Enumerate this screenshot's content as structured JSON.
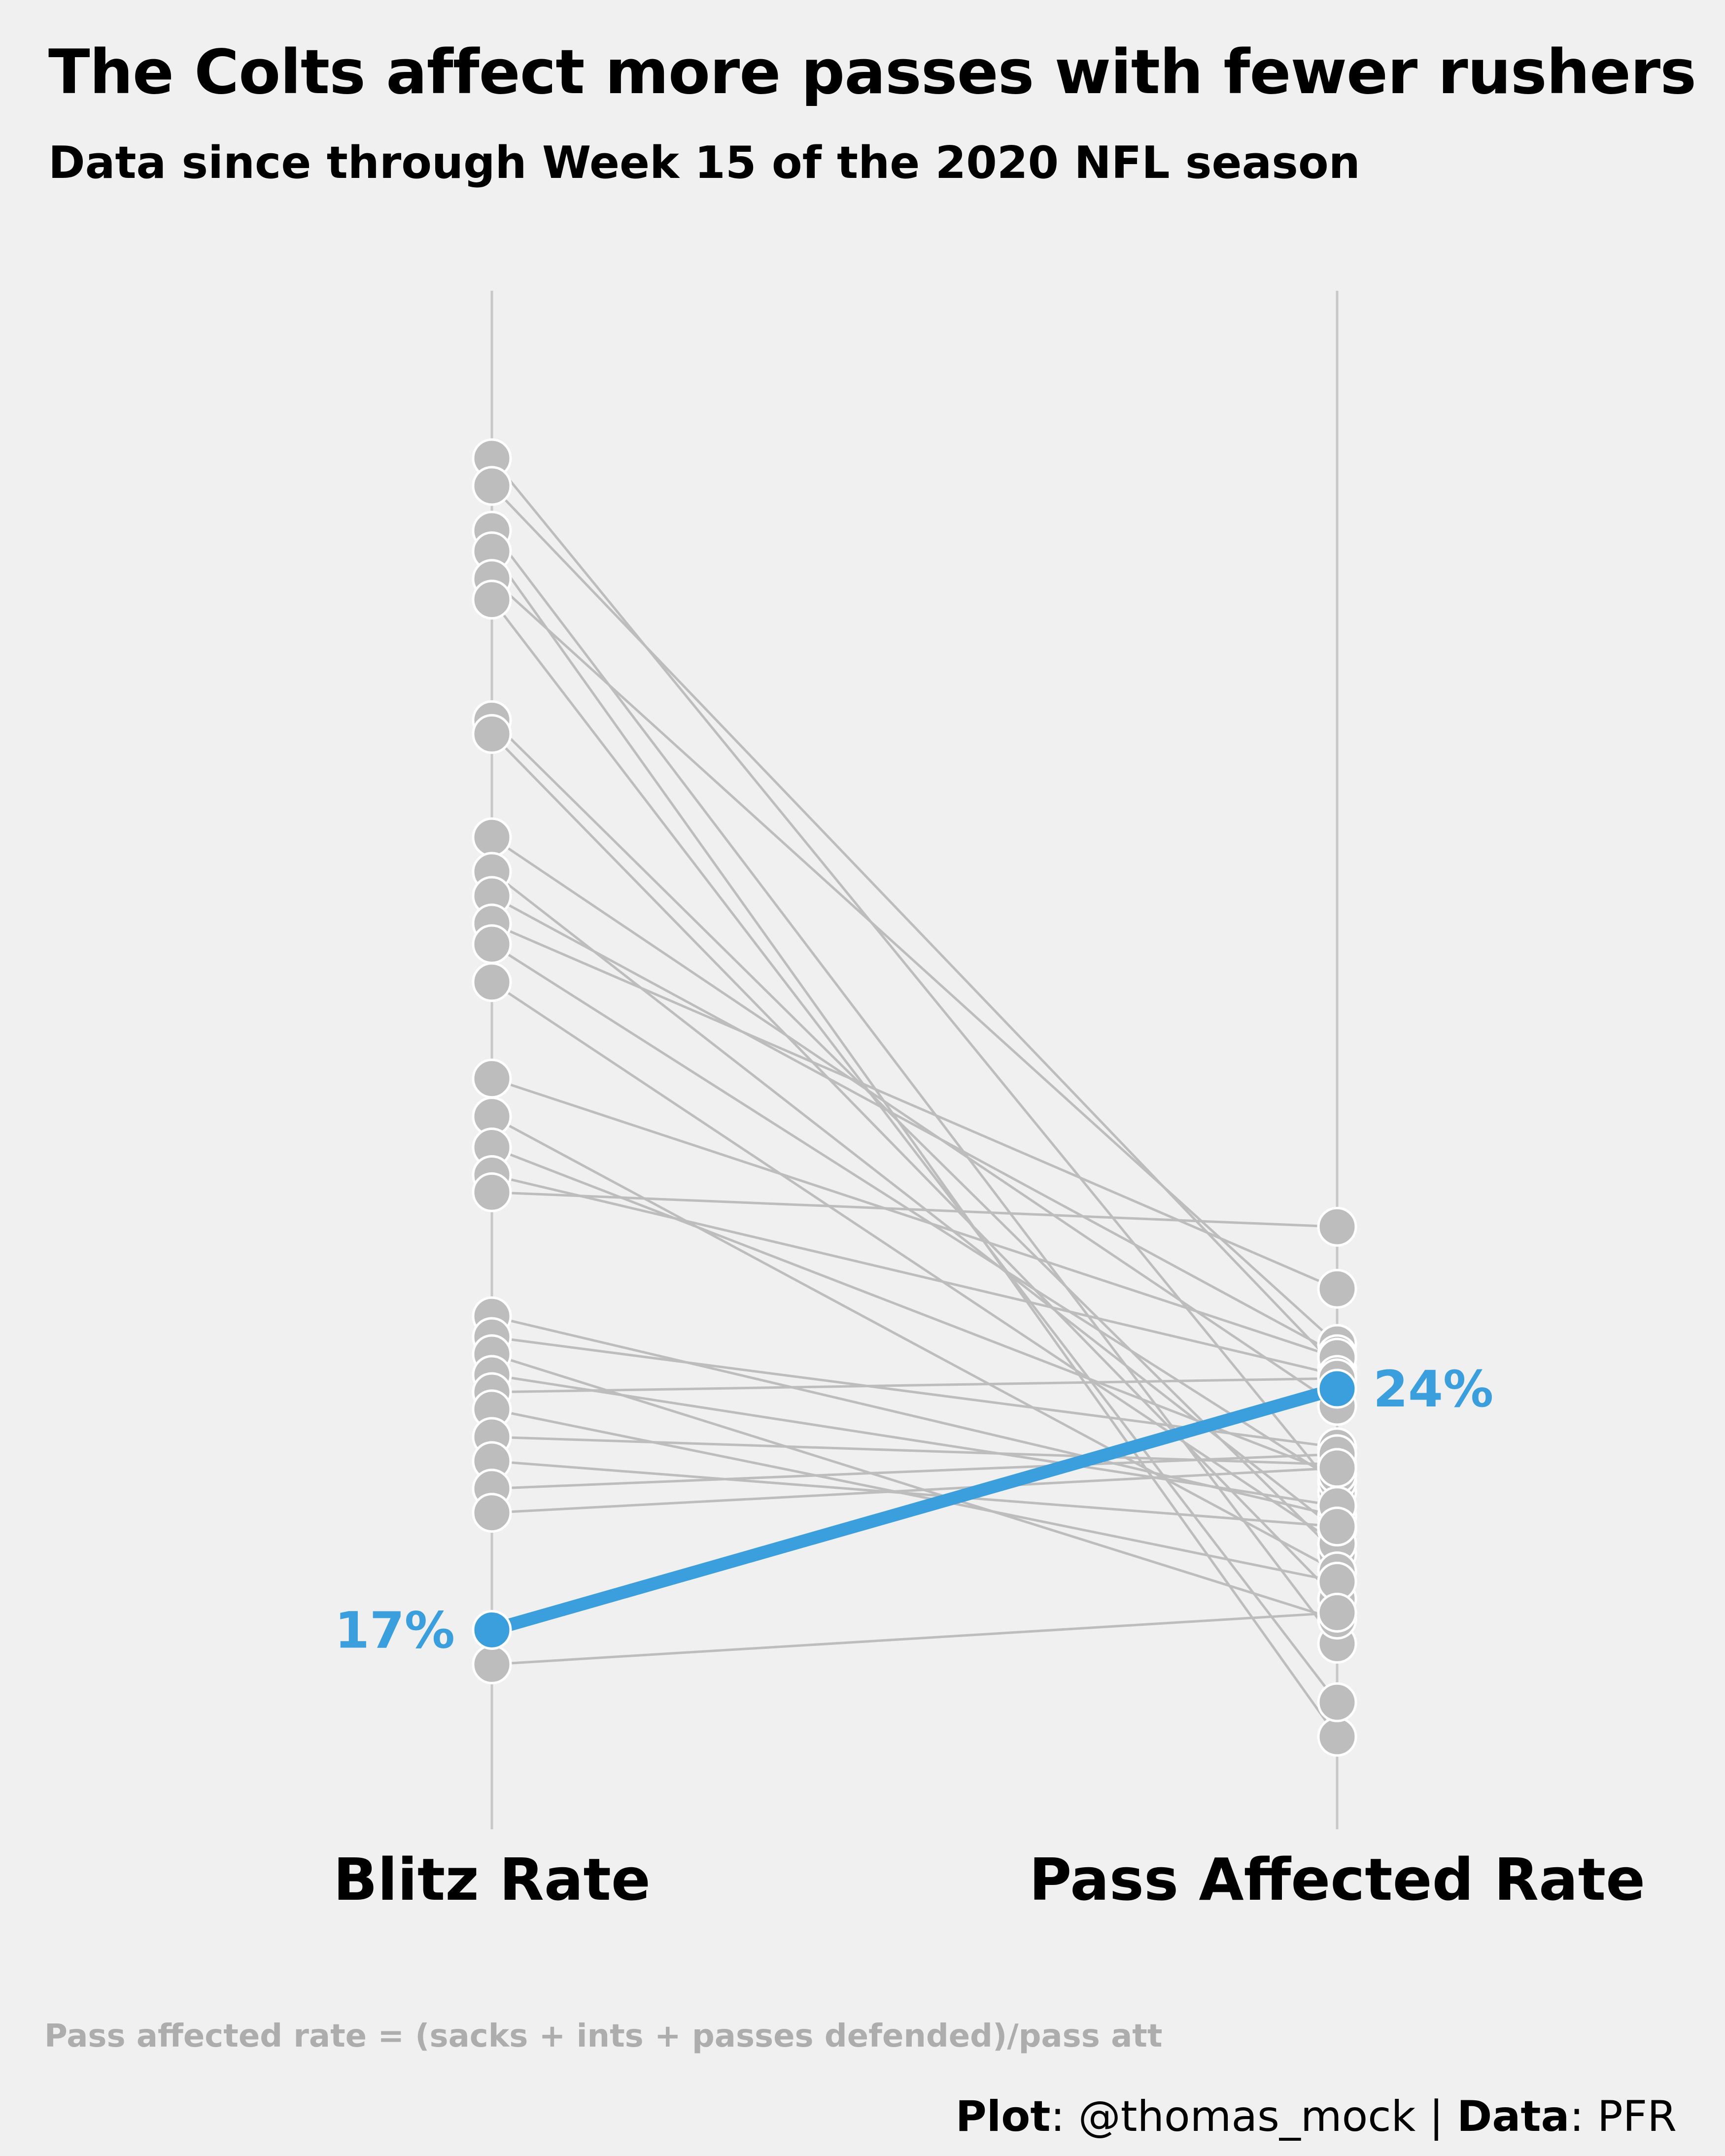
{
  "header": {
    "title": "The Colts affect more passes with fewer rushers",
    "subtitle": "Data since through Week 15 of the 2020 NFL season"
  },
  "footer": {
    "formula_note": "Pass affected rate = (sacks + ints + passes defended)/pass att",
    "plot_label": "Plot",
    "plot_value": ": @thomas_mock | ",
    "data_label": "Data",
    "data_value": ": PFR"
  },
  "colors": {
    "background": "#f0f0f0",
    "highlight": "#3a9fdc",
    "others": "#bdbdbd",
    "axis": "#c8c8c8"
  },
  "chart_data": {
    "type": "line",
    "subtype": "slopegraph",
    "categories": [
      "Blitz Rate",
      "Pass Affected Rate"
    ],
    "category_labels": [
      "Blitz Rate",
      "Pass Affected Rate"
    ],
    "highlight": {
      "team": "Colts",
      "values": [
        17,
        24
      ],
      "labels": [
        "17%",
        "24%"
      ]
    },
    "others": [
      [
        51.0,
        21.0
      ],
      [
        50.2,
        24.6
      ],
      [
        48.9,
        16.6
      ],
      [
        48.3,
        13.9
      ],
      [
        47.5,
        25.3
      ],
      [
        46.9,
        14.9
      ],
      [
        43.4,
        19.2
      ],
      [
        43.0,
        17.9
      ],
      [
        40.0,
        23.5
      ],
      [
        39.0,
        19.9
      ],
      [
        38.3,
        25.0
      ],
      [
        37.5,
        26.9
      ],
      [
        36.9,
        21.3
      ],
      [
        35.8,
        19.5
      ],
      [
        33.0,
        24.9
      ],
      [
        31.9,
        18.7
      ],
      [
        31.0,
        21.5
      ],
      [
        30.2,
        24.4
      ],
      [
        29.7,
        28.7
      ],
      [
        26.1,
        20.3
      ],
      [
        25.5,
        22.3
      ],
      [
        25.0,
        17.3
      ],
      [
        24.4,
        20.6
      ],
      [
        23.9,
        24.3
      ],
      [
        23.4,
        18.4
      ],
      [
        22.6,
        21.8
      ],
      [
        21.9,
        20.0
      ],
      [
        21.1,
        22.1
      ],
      [
        20.4,
        21.7
      ],
      [
        16.0,
        17.5
      ]
    ],
    "ylim": [
      11,
      51
    ],
    "grid": false,
    "legend": "none"
  }
}
